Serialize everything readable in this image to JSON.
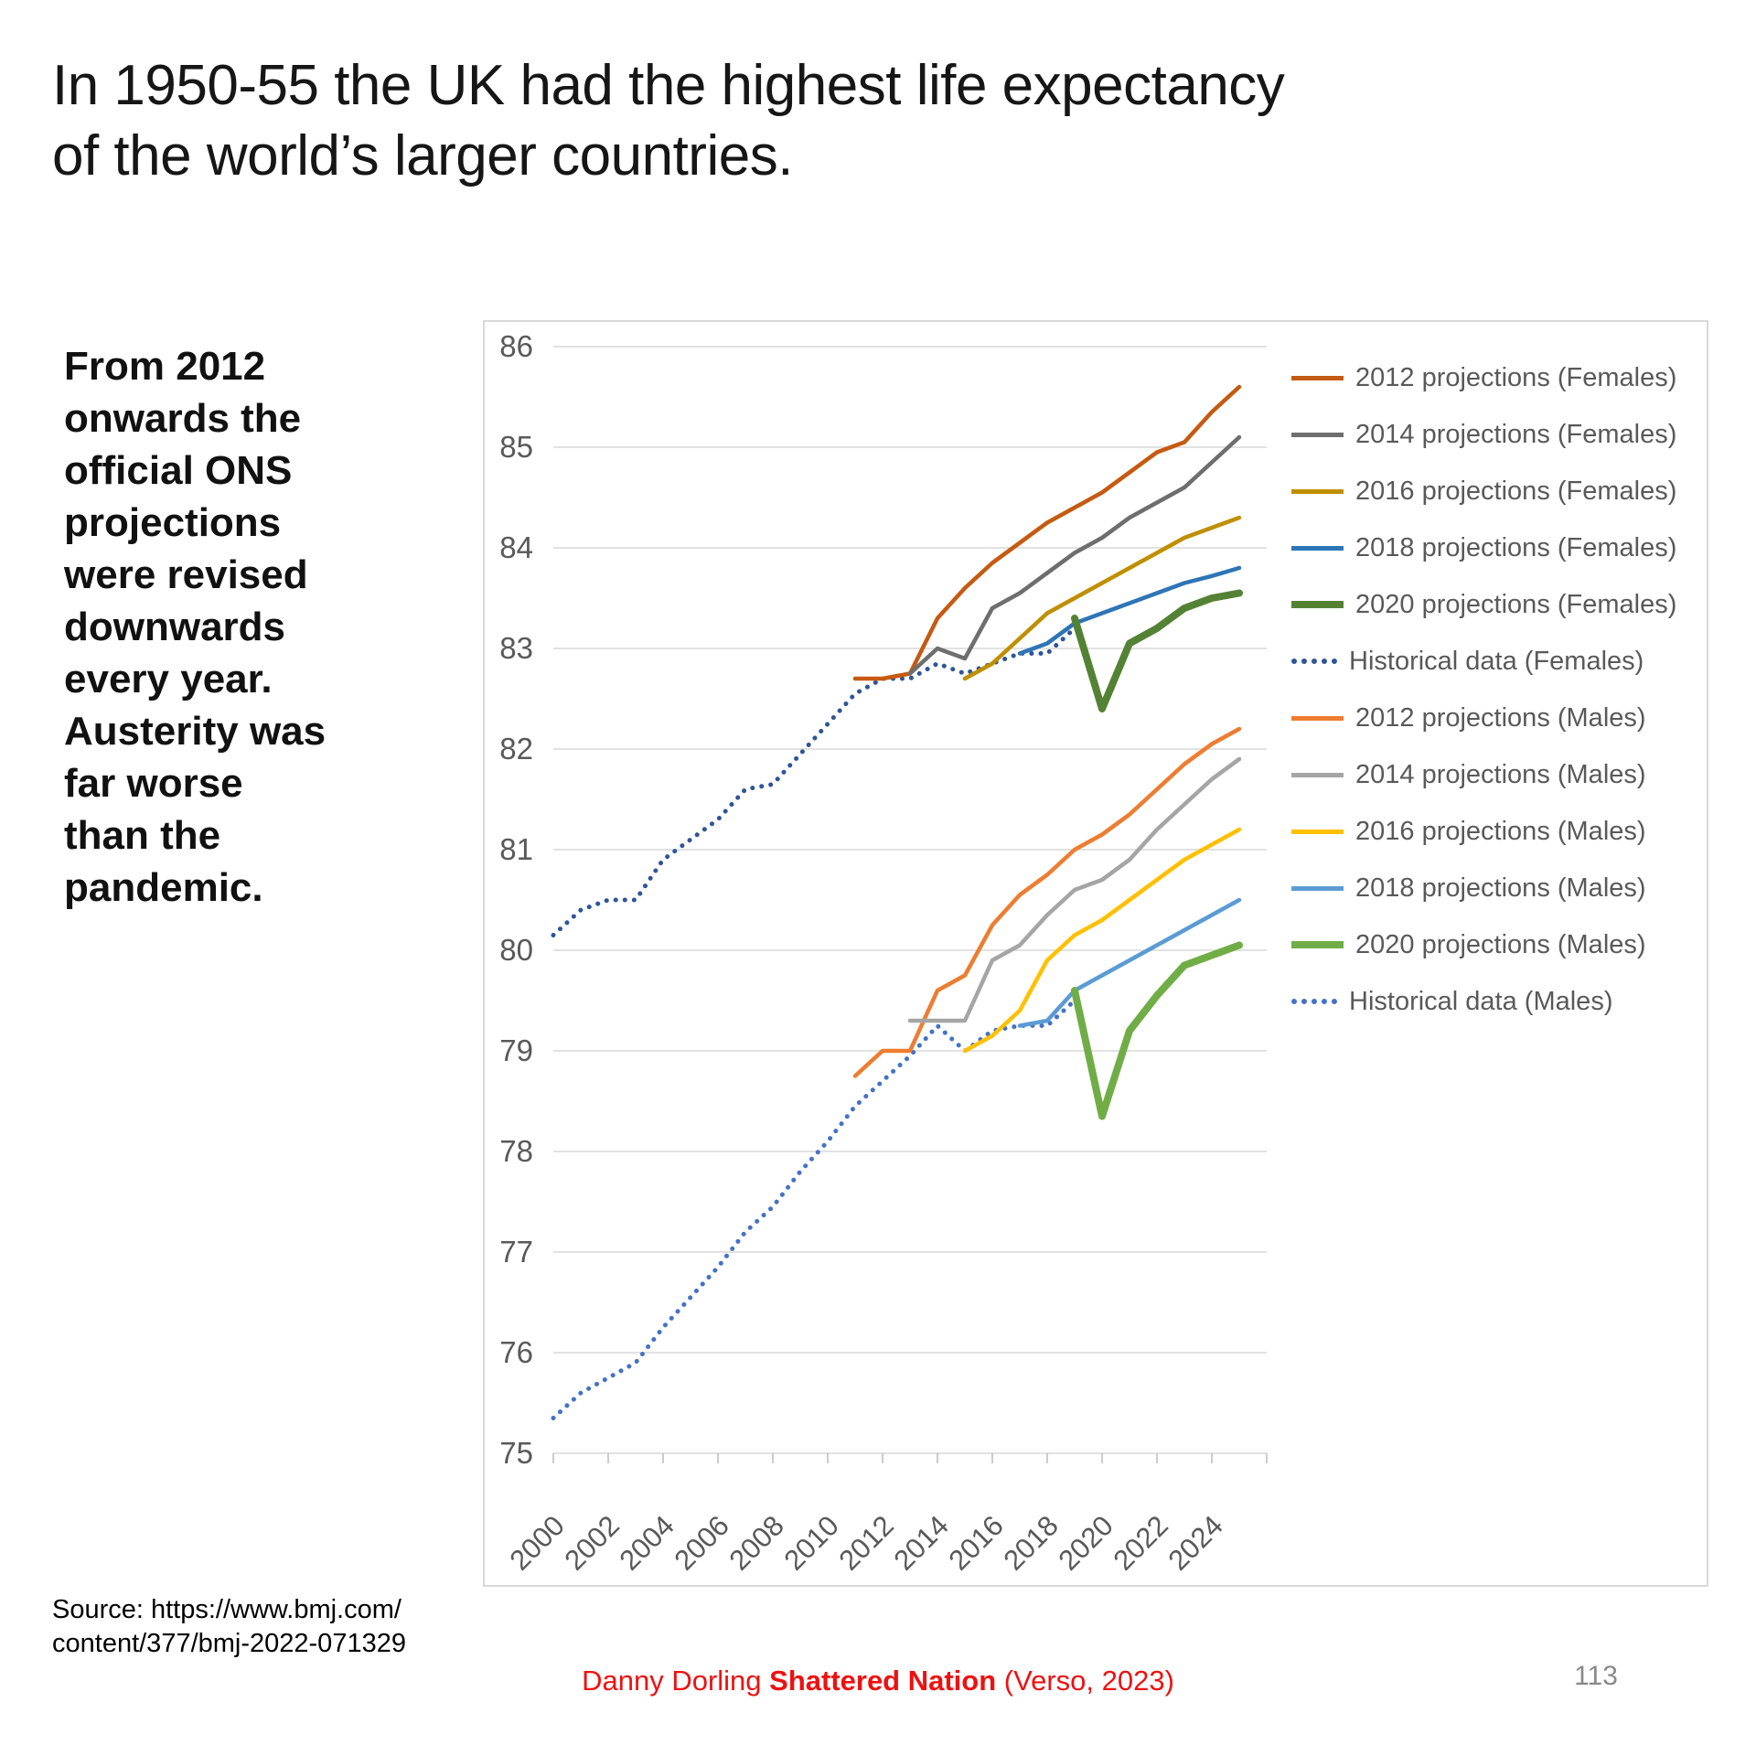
{
  "slide": {
    "title_lines": [
      "In 1950-55 the UK had the highest life expectancy",
      "of the world’s larger countries."
    ],
    "note_lines": [
      "From 2012",
      "onwards the",
      "official ONS",
      "projections",
      "were revised",
      "downwards",
      "every year.",
      "Austerity was",
      "far worse",
      "than the",
      "pandemic."
    ],
    "source_lines": [
      "Source: https://www.bmj.com/",
      "content/377/bmj-2022-071329"
    ],
    "footer": {
      "prefix": "Danny Dorling ",
      "book": "Shattered Nation",
      "suffix": " (Verso, 2023)",
      "color": "#ee1111"
    },
    "page_number": "113"
  },
  "chart_data": {
    "type": "line",
    "title": "",
    "xlabel": "",
    "ylabel": "",
    "xlim": [
      2000,
      2026
    ],
    "ylim": [
      75,
      86
    ],
    "grid": "horizontal",
    "legend_position": "right",
    "axis_color": "#595959",
    "gridline_color": "#d9d9d9",
    "tick_color": "#bfbfbf",
    "y_tick_labels": [
      75,
      76,
      77,
      78,
      79,
      80,
      81,
      82,
      83,
      84,
      85,
      86
    ],
    "x_tick_labels": [
      2000,
      2002,
      2004,
      2006,
      2008,
      2010,
      2012,
      2014,
      2016,
      2018,
      2020,
      2022,
      2024
    ],
    "series": [
      {
        "name": "2012 projections (Females)",
        "color": "#c55a11",
        "style": "solid",
        "thick": false,
        "years": [
          2011,
          2012,
          2013,
          2014,
          2015,
          2016,
          2017,
          2018,
          2019,
          2020,
          2021,
          2022,
          2023,
          2024,
          2025
        ],
        "values": [
          82.7,
          82.7,
          82.75,
          83.3,
          83.6,
          83.85,
          84.05,
          84.25,
          84.4,
          84.55,
          84.75,
          84.95,
          85.05,
          85.35,
          85.6
        ]
      },
      {
        "name": "2014 projections (Females)",
        "color": "#6e6e6e",
        "style": "solid",
        "thick": false,
        "years": [
          2013,
          2014,
          2015,
          2016,
          2017,
          2018,
          2019,
          2020,
          2021,
          2022,
          2023,
          2024,
          2025
        ],
        "values": [
          82.75,
          83.0,
          82.9,
          83.4,
          83.55,
          83.75,
          83.95,
          84.1,
          84.3,
          84.45,
          84.6,
          84.85,
          85.1
        ]
      },
      {
        "name": "2016 projections (Females)",
        "color": "#bf8f00",
        "style": "solid",
        "thick": false,
        "years": [
          2015,
          2016,
          2017,
          2018,
          2019,
          2020,
          2021,
          2022,
          2023,
          2024,
          2025
        ],
        "values": [
          82.7,
          82.85,
          83.1,
          83.35,
          83.5,
          83.65,
          83.8,
          83.95,
          84.1,
          84.2,
          84.3
        ]
      },
      {
        "name": "2018 projections (Females)",
        "color": "#2e75b6",
        "style": "solid",
        "thick": false,
        "years": [
          2017,
          2018,
          2019,
          2020,
          2021,
          2022,
          2023,
          2024,
          2025
        ],
        "values": [
          82.95,
          83.05,
          83.25,
          83.35,
          83.45,
          83.55,
          83.65,
          83.72,
          83.8
        ]
      },
      {
        "name": "2020 projections (Females)",
        "color": "#548235",
        "style": "solid",
        "thick": true,
        "years": [
          2019,
          2020,
          2021,
          2022,
          2023,
          2024,
          2025
        ],
        "values": [
          83.3,
          82.4,
          83.05,
          83.2,
          83.4,
          83.5,
          83.55
        ]
      },
      {
        "name": "Historical data (Females)",
        "color": "#2f5597",
        "style": "dotted",
        "thick": false,
        "years": [
          2000,
          2001,
          2002,
          2003,
          2004,
          2005,
          2006,
          2007,
          2008,
          2009,
          2010,
          2011,
          2012,
          2013,
          2014,
          2015,
          2016,
          2017,
          2018,
          2019
        ],
        "values": [
          80.15,
          80.4,
          80.5,
          80.5,
          80.9,
          81.1,
          81.3,
          81.6,
          81.65,
          81.95,
          82.25,
          82.55,
          82.7,
          82.7,
          82.85,
          82.75,
          82.85,
          82.95,
          82.95,
          83.2
        ]
      },
      {
        "name": "2012 projections (Males)",
        "color": "#ed7d31",
        "style": "solid",
        "thick": false,
        "years": [
          2011,
          2012,
          2013,
          2014,
          2015,
          2016,
          2017,
          2018,
          2019,
          2020,
          2021,
          2022,
          2023,
          2024,
          2025
        ],
        "values": [
          78.75,
          79.0,
          79.0,
          79.6,
          79.75,
          80.25,
          80.55,
          80.75,
          81.0,
          81.15,
          81.35,
          81.6,
          81.85,
          82.05,
          82.2
        ]
      },
      {
        "name": "2014 projections (Males)",
        "color": "#a5a5a5",
        "style": "solid",
        "thick": false,
        "years": [
          2013,
          2014,
          2015,
          2016,
          2017,
          2018,
          2019,
          2020,
          2021,
          2022,
          2023,
          2024,
          2025
        ],
        "values": [
          79.3,
          79.3,
          79.3,
          79.9,
          80.05,
          80.35,
          80.6,
          80.7,
          80.9,
          81.2,
          81.45,
          81.7,
          81.9
        ]
      },
      {
        "name": "2016 projections (Males)",
        "color": "#ffc000",
        "style": "solid",
        "thick": false,
        "years": [
          2015,
          2016,
          2017,
          2018,
          2019,
          2020,
          2021,
          2022,
          2023,
          2024,
          2025
        ],
        "values": [
          79.0,
          79.15,
          79.4,
          79.9,
          80.15,
          80.3,
          80.5,
          80.7,
          80.9,
          81.05,
          81.2
        ]
      },
      {
        "name": "2018 projections (Males)",
        "color": "#5b9bd5",
        "style": "solid",
        "thick": false,
        "years": [
          2017,
          2018,
          2019,
          2020,
          2021,
          2022,
          2023,
          2024,
          2025
        ],
        "values": [
          79.25,
          79.3,
          79.6,
          79.75,
          79.9,
          80.05,
          80.2,
          80.35,
          80.5
        ]
      },
      {
        "name": "2020 projections (Males)",
        "color": "#70ad47",
        "style": "solid",
        "thick": true,
        "years": [
          2019,
          2020,
          2021,
          2022,
          2023,
          2024,
          2025
        ],
        "values": [
          79.6,
          78.35,
          79.2,
          79.55,
          79.85,
          79.95,
          80.05
        ]
      },
      {
        "name": "Historical data (Males)",
        "color": "#4472c4",
        "style": "dotted",
        "thick": false,
        "years": [
          2000,
          2001,
          2002,
          2003,
          2004,
          2005,
          2006,
          2007,
          2008,
          2009,
          2010,
          2011,
          2012,
          2013,
          2014,
          2015,
          2016,
          2017,
          2018,
          2019
        ],
        "values": [
          75.35,
          75.6,
          75.75,
          75.9,
          76.25,
          76.55,
          76.85,
          77.2,
          77.45,
          77.8,
          78.1,
          78.45,
          78.7,
          78.95,
          79.25,
          79.0,
          79.2,
          79.25,
          79.25,
          79.5
        ]
      }
    ]
  }
}
